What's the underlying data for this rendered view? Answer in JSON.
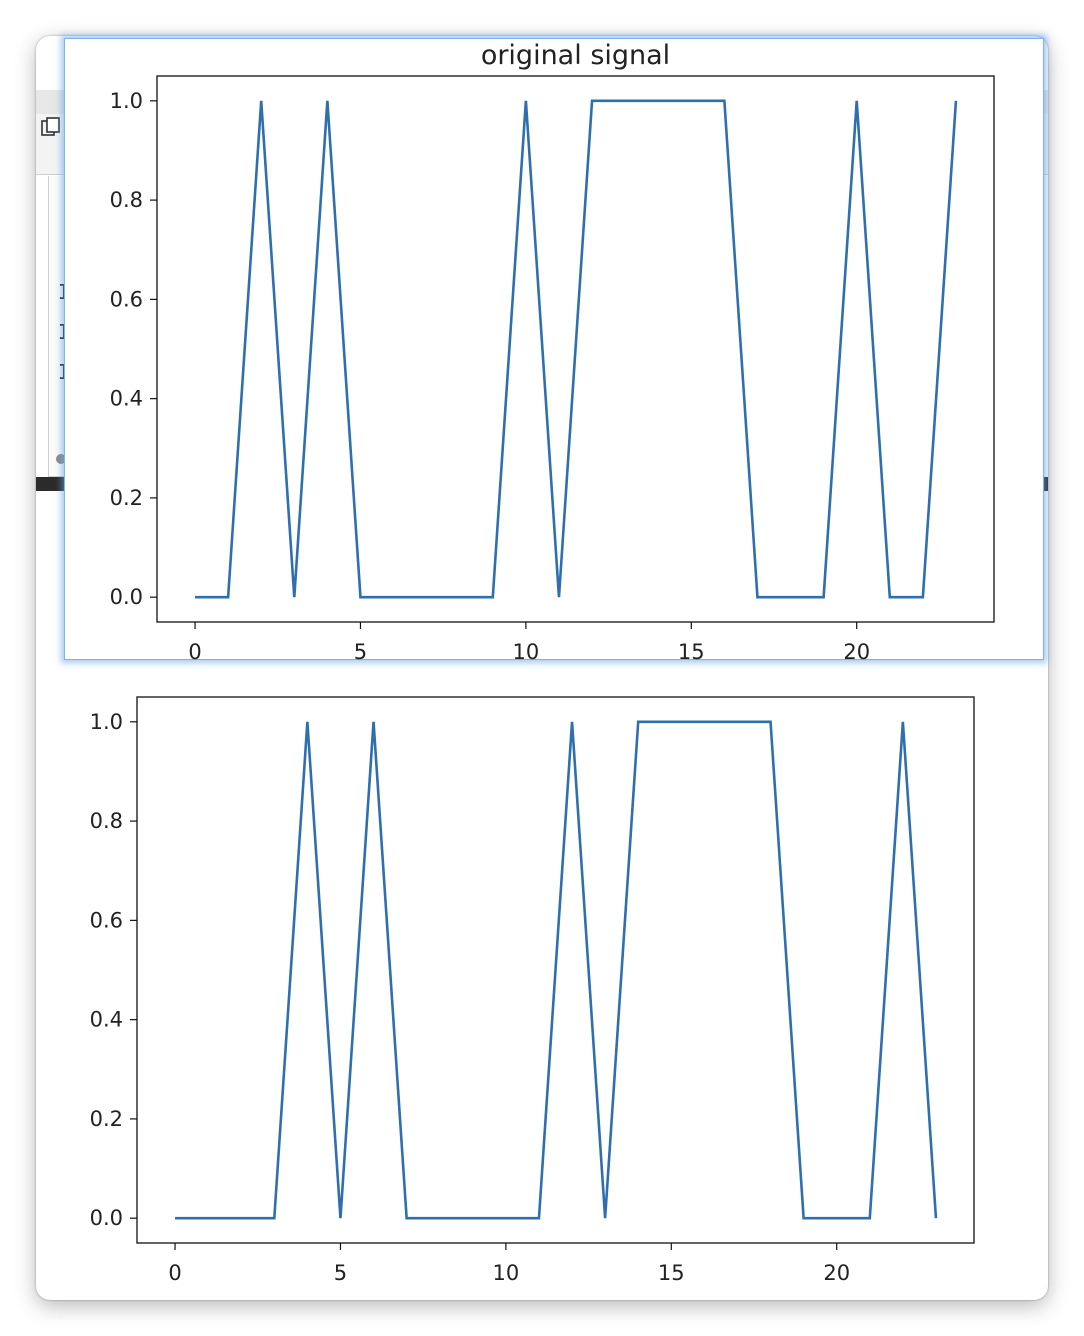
{
  "background_window": {
    "text_column": [
      "I",
      "I",
      "I"
    ]
  },
  "colors": {
    "line": "#2f6fae",
    "figure_window_border": "#7fb2e8"
  },
  "chart_data": [
    {
      "type": "line",
      "title": "original signal",
      "xlabel": "",
      "ylabel": "",
      "x": [
        0,
        1,
        2,
        3,
        4,
        5,
        6,
        7,
        8,
        9,
        10,
        11,
        12,
        13,
        14,
        15,
        16,
        17,
        18,
        19,
        20,
        21,
        22,
        23
      ],
      "series": [
        {
          "values": [
            0,
            0,
            1,
            0,
            1,
            0,
            0,
            0,
            0,
            0,
            1,
            0,
            1,
            1,
            1,
            1,
            1,
            0,
            0,
            0,
            1,
            0,
            0,
            1
          ]
        }
      ],
      "xlim": [
        -1.15,
        24.15
      ],
      "ylim": [
        -0.05,
        1.05
      ],
      "xticks": [
        0,
        5,
        10,
        15,
        20
      ],
      "xtick_labels": [
        "0",
        "5",
        "10",
        "15",
        "20"
      ],
      "yticks": [
        0.0,
        0.2,
        0.4,
        0.6,
        0.8,
        1.0
      ],
      "ytick_labels": [
        "0.0",
        "0.2",
        "0.4",
        "0.6",
        "0.8",
        "1.0"
      ],
      "grid": false,
      "legend": "none"
    },
    {
      "type": "line",
      "title": "",
      "xlabel": "",
      "ylabel": "",
      "x": [
        0,
        1,
        2,
        3,
        4,
        5,
        6,
        7,
        8,
        9,
        10,
        11,
        12,
        13,
        14,
        15,
        16,
        17,
        18,
        19,
        20,
        21,
        22,
        23
      ],
      "series": [
        {
          "values": [
            0,
            0,
            0,
            0,
            1,
            0,
            1,
            0,
            0,
            0,
            0,
            0,
            1,
            0,
            1,
            1,
            1,
            1,
            1,
            0,
            0,
            0,
            1,
            0
          ]
        }
      ],
      "xlim": [
        -1.15,
        24.15
      ],
      "ylim": [
        -0.05,
        1.05
      ],
      "xticks": [
        0,
        5,
        10,
        15,
        20
      ],
      "xtick_labels": [
        "0",
        "5",
        "10",
        "15",
        "20"
      ],
      "yticks": [
        0.0,
        0.2,
        0.4,
        0.6,
        0.8,
        1.0
      ],
      "ytick_labels": [
        "0.0",
        "0.2",
        "0.4",
        "0.6",
        "0.8",
        "1.0"
      ],
      "grid": false,
      "legend": "none"
    }
  ]
}
